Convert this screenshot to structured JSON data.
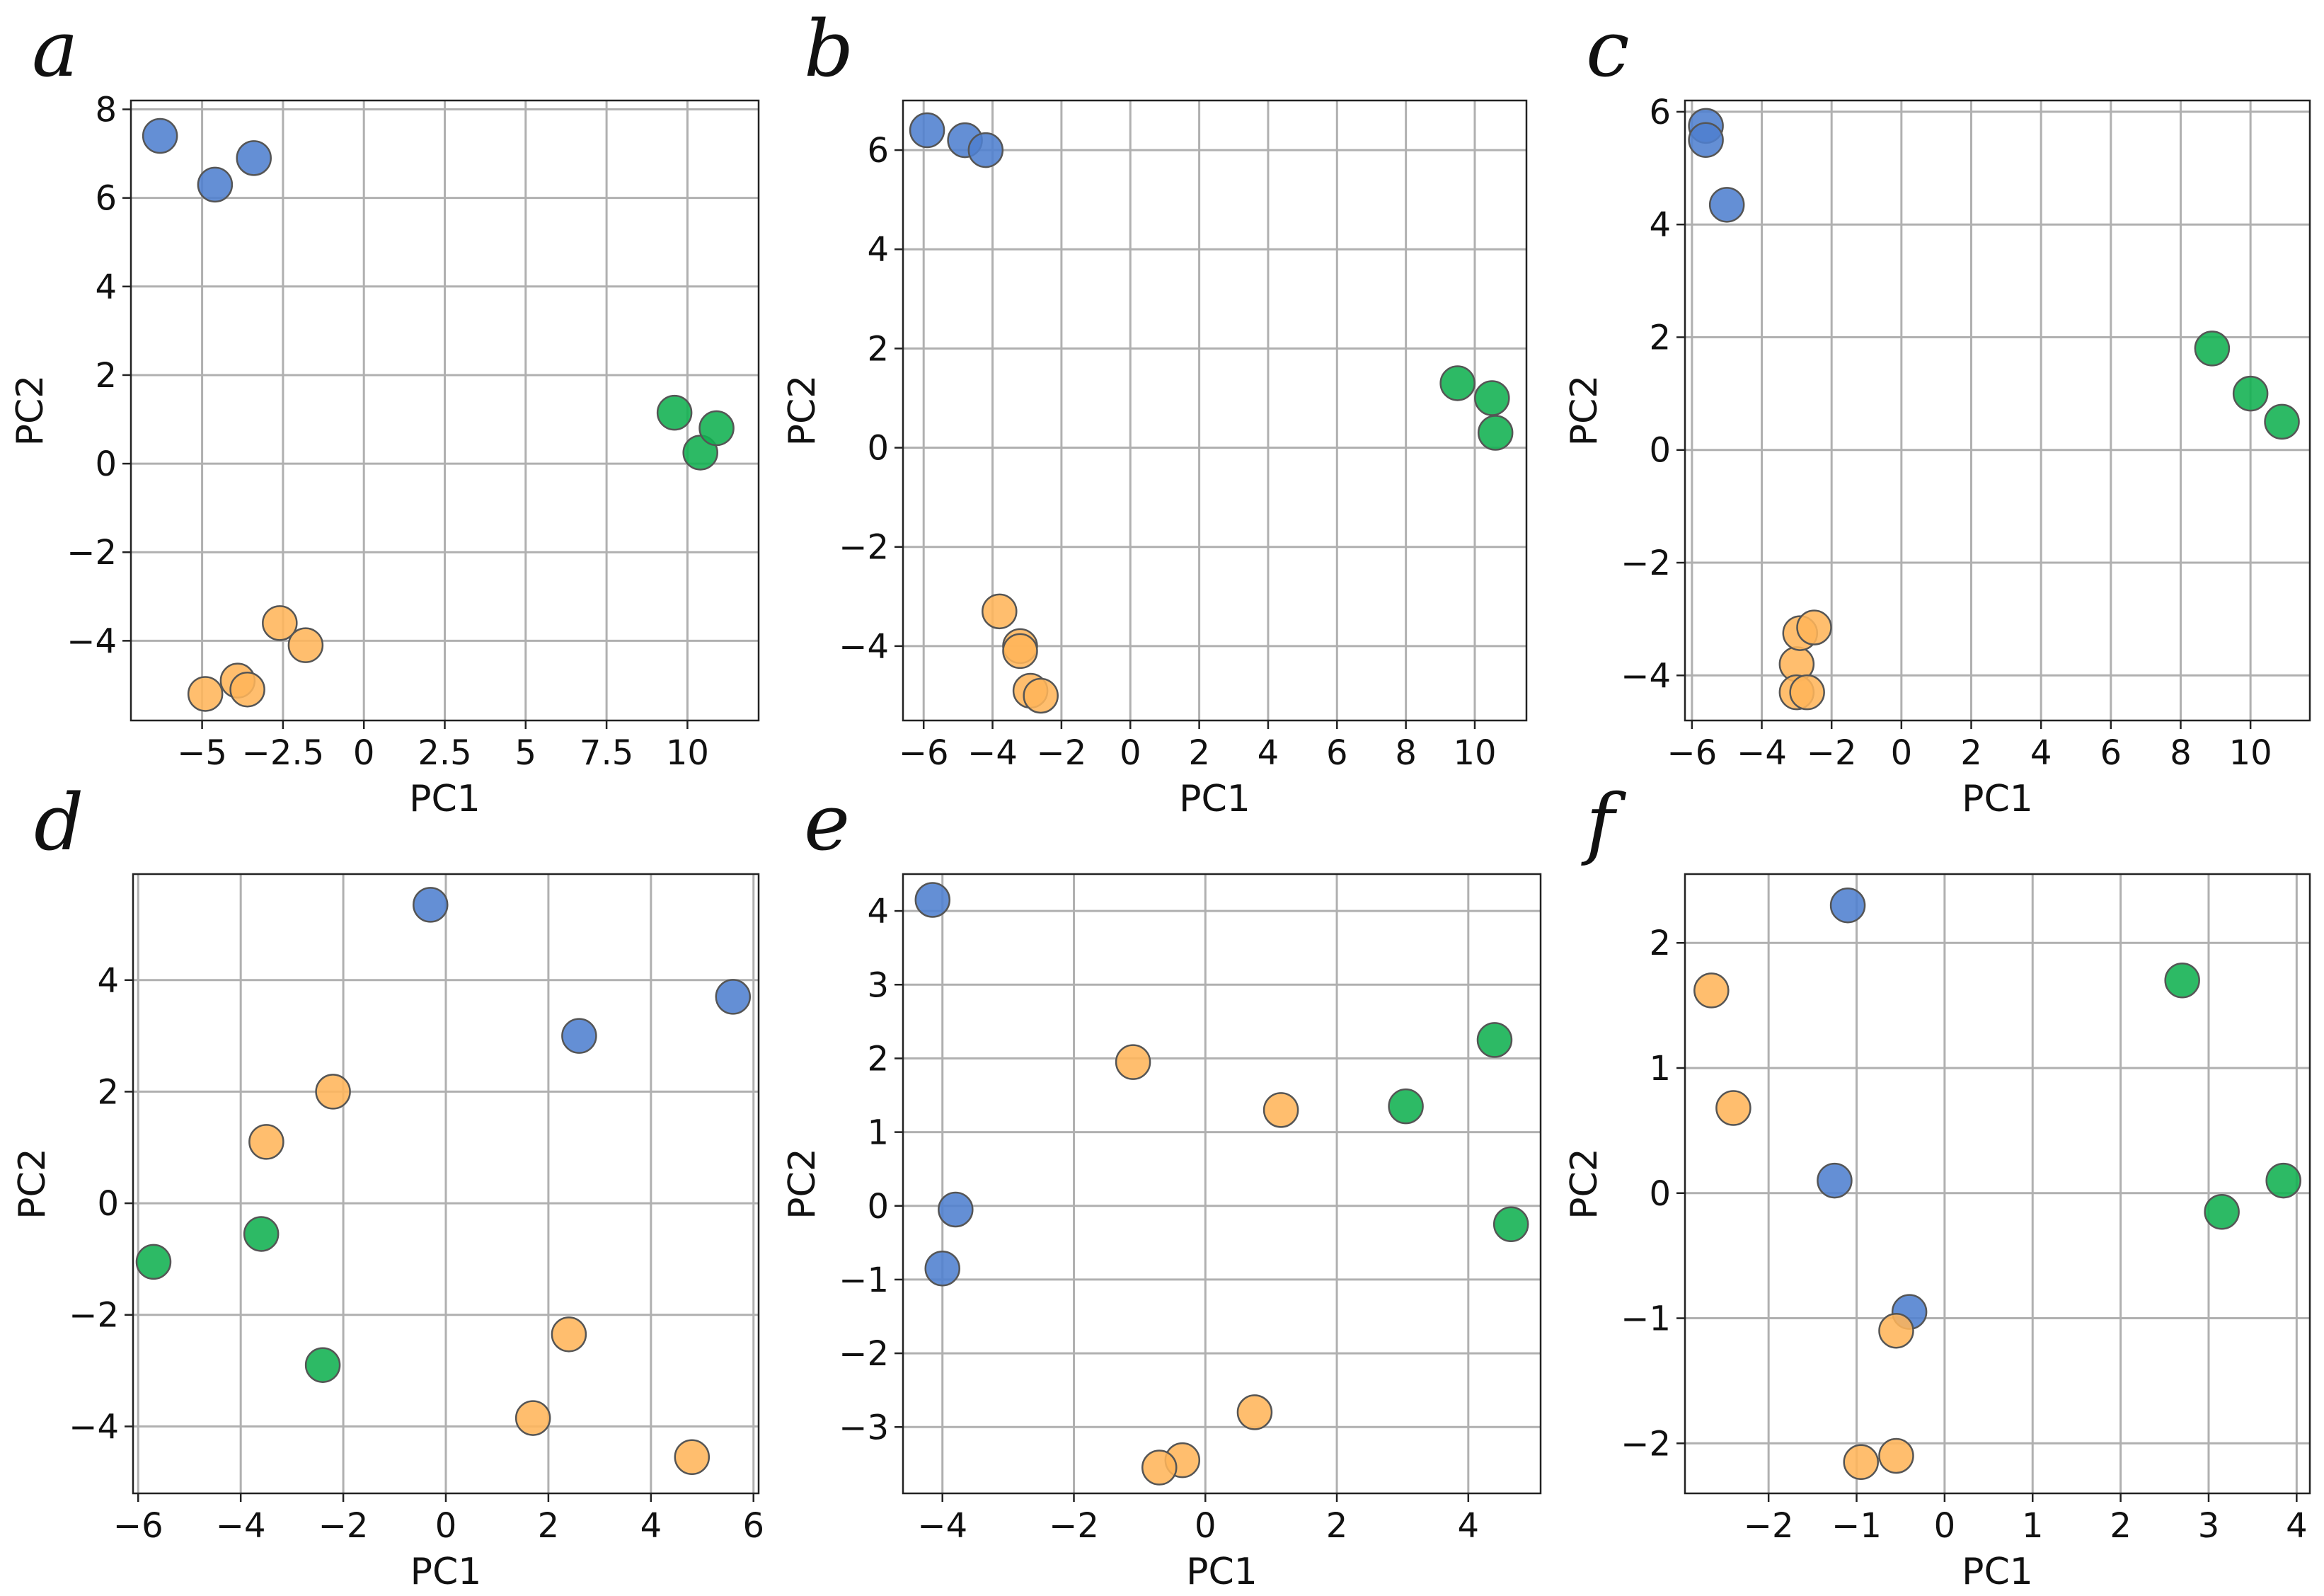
{
  "colors": {
    "blue": "#4f7fcf",
    "orange": "#ffb55a",
    "green": "#10b050",
    "edge": "#555555"
  },
  "chart_data": [
    {
      "type": "scatter",
      "panel": "a",
      "xlabel": "PC1",
      "ylabel": "PC2",
      "xlim": [
        -7.2,
        12.2
      ],
      "ylim": [
        -5.8,
        8.2
      ],
      "xticks": [
        -5,
        -2.5,
        0,
        2.5,
        5,
        7.5,
        10
      ],
      "xtick_labels": [
        "−5",
        "−2.5",
        "0",
        "2.5",
        "5",
        "7.5",
        "10"
      ],
      "yticks": [
        -4,
        -2,
        0,
        2,
        4,
        6,
        8
      ],
      "ytick_labels": [
        "−4",
        "−2",
        "0",
        "2",
        "4",
        "6",
        "8"
      ],
      "grid": true,
      "series": [
        {
          "name": "blue",
          "x": [
            -6.3,
            -4.6,
            -3.4
          ],
          "y": [
            7.4,
            6.3,
            6.9
          ]
        },
        {
          "name": "orange",
          "x": [
            -4.9,
            -3.9,
            -3.6,
            -2.6,
            -1.8
          ],
          "y": [
            -5.2,
            -4.9,
            -5.1,
            -3.6,
            -4.1
          ]
        },
        {
          "name": "green",
          "x": [
            9.6,
            10.4,
            10.9
          ],
          "y": [
            1.15,
            0.25,
            0.8
          ]
        }
      ]
    },
    {
      "type": "scatter",
      "panel": "b",
      "xlabel": "PC1",
      "ylabel": "PC2",
      "xlim": [
        -6.6,
        11.5
      ],
      "ylim": [
        -5.5,
        7.0
      ],
      "xticks": [
        -6,
        -4,
        -2,
        0,
        2,
        4,
        6,
        8,
        10
      ],
      "xtick_labels": [
        "−6",
        "−4",
        "−2",
        "0",
        "2",
        "4",
        "6",
        "8",
        "10"
      ],
      "yticks": [
        -4,
        -2,
        0,
        2,
        4,
        6
      ],
      "ytick_labels": [
        "−4",
        "−2",
        "0",
        "2",
        "4",
        "6"
      ],
      "grid": true,
      "series": [
        {
          "name": "blue",
          "x": [
            -5.9,
            -4.8,
            -4.2
          ],
          "y": [
            6.4,
            6.2,
            6.0
          ]
        },
        {
          "name": "orange",
          "x": [
            -3.8,
            -3.2,
            -3.2,
            -2.9,
            -2.6
          ],
          "y": [
            -3.3,
            -4.0,
            -4.1,
            -4.9,
            -5.0
          ]
        },
        {
          "name": "green",
          "x": [
            9.5,
            10.5,
            10.6
          ],
          "y": [
            1.3,
            1.0,
            0.3
          ]
        }
      ]
    },
    {
      "type": "scatter",
      "panel": "c",
      "xlabel": "PC1",
      "ylabel": "PC2",
      "xlim": [
        -6.2,
        11.7
      ],
      "ylim": [
        -4.8,
        6.2
      ],
      "xticks": [
        -6,
        -4,
        -2,
        0,
        2,
        4,
        6,
        8,
        10
      ],
      "xtick_labels": [
        "−6",
        "−4",
        "−2",
        "0",
        "2",
        "4",
        "6",
        "8",
        "10"
      ],
      "yticks": [
        -4,
        -2,
        0,
        2,
        4,
        6
      ],
      "ytick_labels": [
        "−4",
        "−2",
        "0",
        "2",
        "4",
        "6"
      ],
      "grid": true,
      "series": [
        {
          "name": "blue",
          "x": [
            -5.6,
            -5.6,
            -5.0
          ],
          "y": [
            5.75,
            5.5,
            4.35
          ]
        },
        {
          "name": "orange",
          "x": [
            -3.0,
            -3.0,
            -2.9,
            -2.7,
            -2.5
          ],
          "y": [
            -3.8,
            -4.3,
            -3.25,
            -4.3,
            -3.15
          ]
        },
        {
          "name": "green",
          "x": [
            8.9,
            10.0,
            10.9
          ],
          "y": [
            1.8,
            1.0,
            0.5
          ]
        }
      ]
    },
    {
      "type": "scatter",
      "panel": "d",
      "xlabel": "PC1",
      "ylabel": "PC2",
      "xlim": [
        -6.1,
        6.1
      ],
      "ylim": [
        -5.2,
        5.9
      ],
      "xticks": [
        -6,
        -4,
        -2,
        0,
        2,
        4,
        6
      ],
      "xtick_labels": [
        "−6",
        "−4",
        "−2",
        "0",
        "2",
        "4",
        "6"
      ],
      "yticks": [
        -4,
        -2,
        0,
        2,
        4
      ],
      "ytick_labels": [
        "−4",
        "−2",
        "0",
        "2",
        "4"
      ],
      "grid": true,
      "series": [
        {
          "name": "blue",
          "x": [
            -0.3,
            2.6,
            5.6
          ],
          "y": [
            5.35,
            3.0,
            3.7
          ]
        },
        {
          "name": "orange",
          "x": [
            -2.2,
            -3.5,
            2.4,
            1.7,
            4.8
          ],
          "y": [
            2.0,
            1.1,
            -2.35,
            -3.85,
            -4.55
          ]
        },
        {
          "name": "green",
          "x": [
            -5.7,
            -3.6,
            -2.4
          ],
          "y": [
            -1.05,
            -0.55,
            -2.9
          ]
        }
      ]
    },
    {
      "type": "scatter",
      "panel": "e",
      "xlabel": "PC1",
      "ylabel": "PC2",
      "xlim": [
        -4.6,
        5.1
      ],
      "ylim": [
        -3.9,
        4.5
      ],
      "xticks": [
        -4,
        -2,
        0,
        2,
        4
      ],
      "xtick_labels": [
        "−4",
        "−2",
        "0",
        "2",
        "4"
      ],
      "yticks": [
        -3,
        -2,
        -1,
        0,
        1,
        2,
        3,
        4
      ],
      "ytick_labels": [
        "−3",
        "−2",
        "−1",
        "0",
        "1",
        "2",
        "3",
        "4"
      ],
      "grid": true,
      "series": [
        {
          "name": "blue",
          "x": [
            -4.15,
            -4.0,
            -3.8
          ],
          "y": [
            4.15,
            -0.85,
            -0.05
          ]
        },
        {
          "name": "orange",
          "x": [
            -1.1,
            1.15,
            0.75,
            -0.35,
            -0.7
          ],
          "y": [
            1.95,
            1.3,
            -2.8,
            -3.45,
            -3.55
          ]
        },
        {
          "name": "green",
          "x": [
            3.05,
            4.4,
            4.65
          ],
          "y": [
            1.35,
            2.25,
            -0.25
          ]
        }
      ]
    },
    {
      "type": "scatter",
      "panel": "f",
      "xlabel": "PC1",
      "ylabel": "PC2",
      "xlim": [
        -2.95,
        4.15
      ],
      "ylim": [
        -2.4,
        2.55
      ],
      "xticks": [
        -2,
        -1,
        0,
        1,
        2,
        3,
        4
      ],
      "xtick_labels": [
        "−2",
        "−1",
        "0",
        "1",
        "2",
        "3",
        "4"
      ],
      "yticks": [
        -2,
        -1,
        0,
        1,
        2
      ],
      "ytick_labels": [
        "−2",
        "−1",
        "0",
        "1",
        "2"
      ],
      "grid": true,
      "series": [
        {
          "name": "blue",
          "x": [
            -1.1,
            -1.25,
            -0.4
          ],
          "y": [
            2.3,
            0.1,
            -0.95
          ]
        },
        {
          "name": "orange",
          "x": [
            -2.65,
            -2.4,
            -0.55,
            -0.55,
            -0.95
          ],
          "y": [
            1.62,
            0.68,
            -1.1,
            -2.1,
            -2.15
          ]
        },
        {
          "name": "green",
          "x": [
            2.7,
            3.15,
            3.85
          ],
          "y": [
            1.7,
            -0.15,
            0.1
          ]
        }
      ]
    }
  ]
}
